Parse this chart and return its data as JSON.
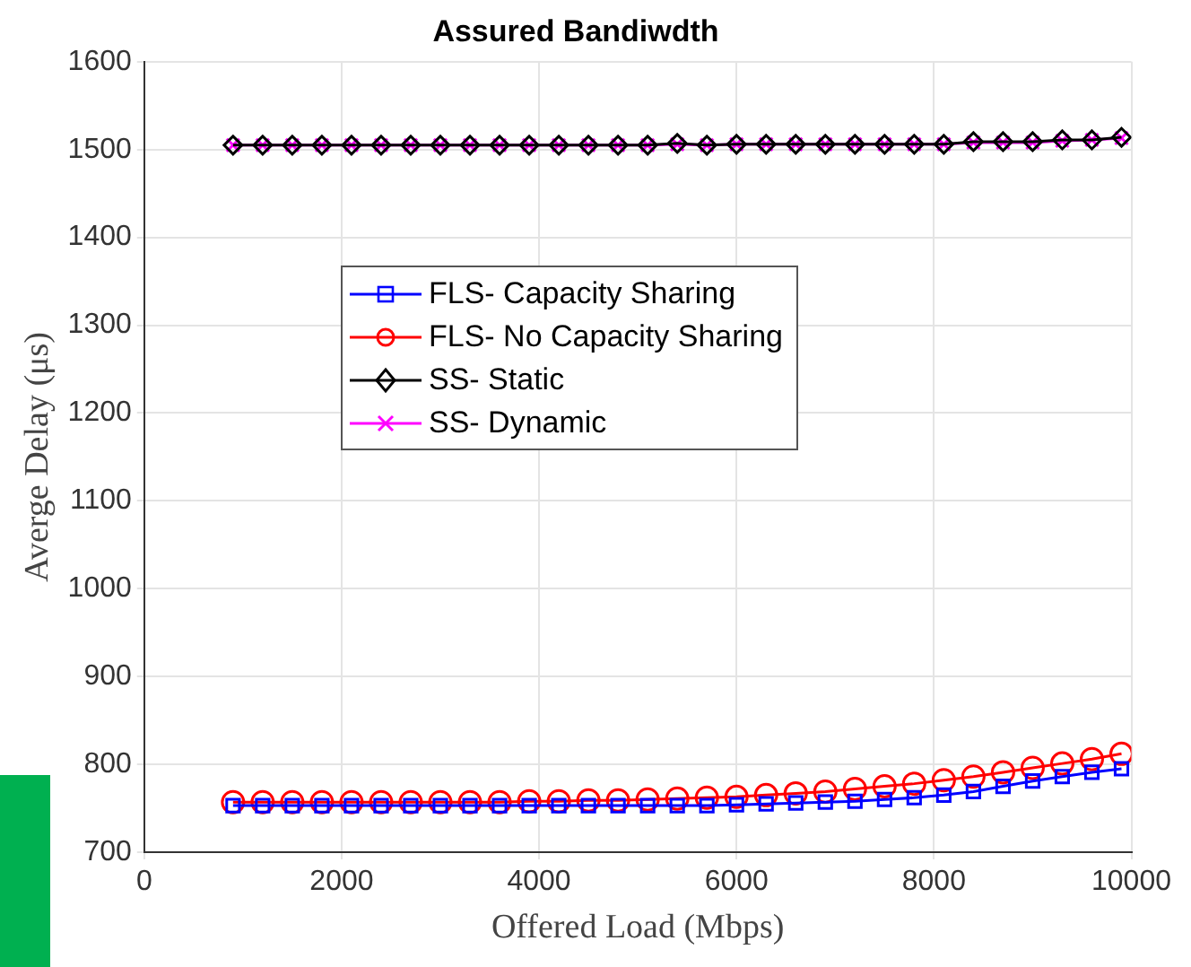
{
  "chart_data": {
    "type": "line",
    "title": "Assured Bandiwdth",
    "xlabel": "Offered Load (Mbps)",
    "ylabel": "Averge Delay (μs)",
    "x": [
      900,
      1200,
      1500,
      1800,
      2100,
      2400,
      2700,
      3000,
      3300,
      3600,
      3900,
      4200,
      4500,
      4800,
      5100,
      5400,
      5700,
      6000,
      6300,
      6600,
      6900,
      7200,
      7500,
      7800,
      8100,
      8400,
      8700,
      9000,
      9300,
      9600,
      9900
    ],
    "series": [
      {
        "name": "FLS- Capacity Sharing",
        "color": "#0000ff",
        "marker": "square",
        "values": [
          753,
          753,
          753,
          753,
          753,
          753,
          753,
          753,
          753,
          753,
          753,
          753,
          753,
          753,
          753,
          753,
          753,
          754,
          755,
          756,
          757,
          758,
          760,
          762,
          765,
          769,
          775,
          781,
          786,
          791,
          795
        ]
      },
      {
        "name": "FLS- No Capacity Sharing",
        "color": "#ff0000",
        "marker": "circle",
        "values": [
          757,
          757,
          757,
          757,
          757,
          757,
          757,
          757,
          757,
          757,
          758,
          758,
          759,
          759,
          760,
          761,
          762,
          763,
          765,
          767,
          769,
          772,
          775,
          778,
          782,
          786,
          791,
          796,
          801,
          806,
          812
        ]
      },
      {
        "name": "SS- Static",
        "color": "#000000",
        "marker": "diamond",
        "values": [
          1505,
          1505,
          1505,
          1505,
          1505,
          1505,
          1505,
          1505,
          1505,
          1505,
          1505,
          1505,
          1505,
          1505,
          1505,
          1507,
          1505,
          1506,
          1506,
          1506,
          1506,
          1506,
          1506,
          1506,
          1506,
          1509,
          1509,
          1509,
          1511,
          1511,
          1514
        ]
      },
      {
        "name": "SS- Dynamic",
        "color": "#ff00ff",
        "marker": "cross",
        "values": [
          1505,
          1505,
          1505,
          1505,
          1505,
          1505,
          1505,
          1505,
          1505,
          1505,
          1505,
          1505,
          1505,
          1505,
          1505,
          1506,
          1505,
          1506,
          1506,
          1506,
          1506,
          1506,
          1506,
          1506,
          1506,
          1508,
          1508,
          1508,
          1510,
          1511,
          1513
        ]
      }
    ],
    "xlim": [
      0,
      10000
    ],
    "xticks": [
      0,
      2000,
      4000,
      6000,
      8000,
      10000
    ],
    "ylim": [
      700,
      1600
    ],
    "yticks": [
      700,
      800,
      900,
      1000,
      1100,
      1200,
      1300,
      1400,
      1500,
      1600
    ],
    "grid": true,
    "legend": "top left",
    "line_style": "solid"
  }
}
